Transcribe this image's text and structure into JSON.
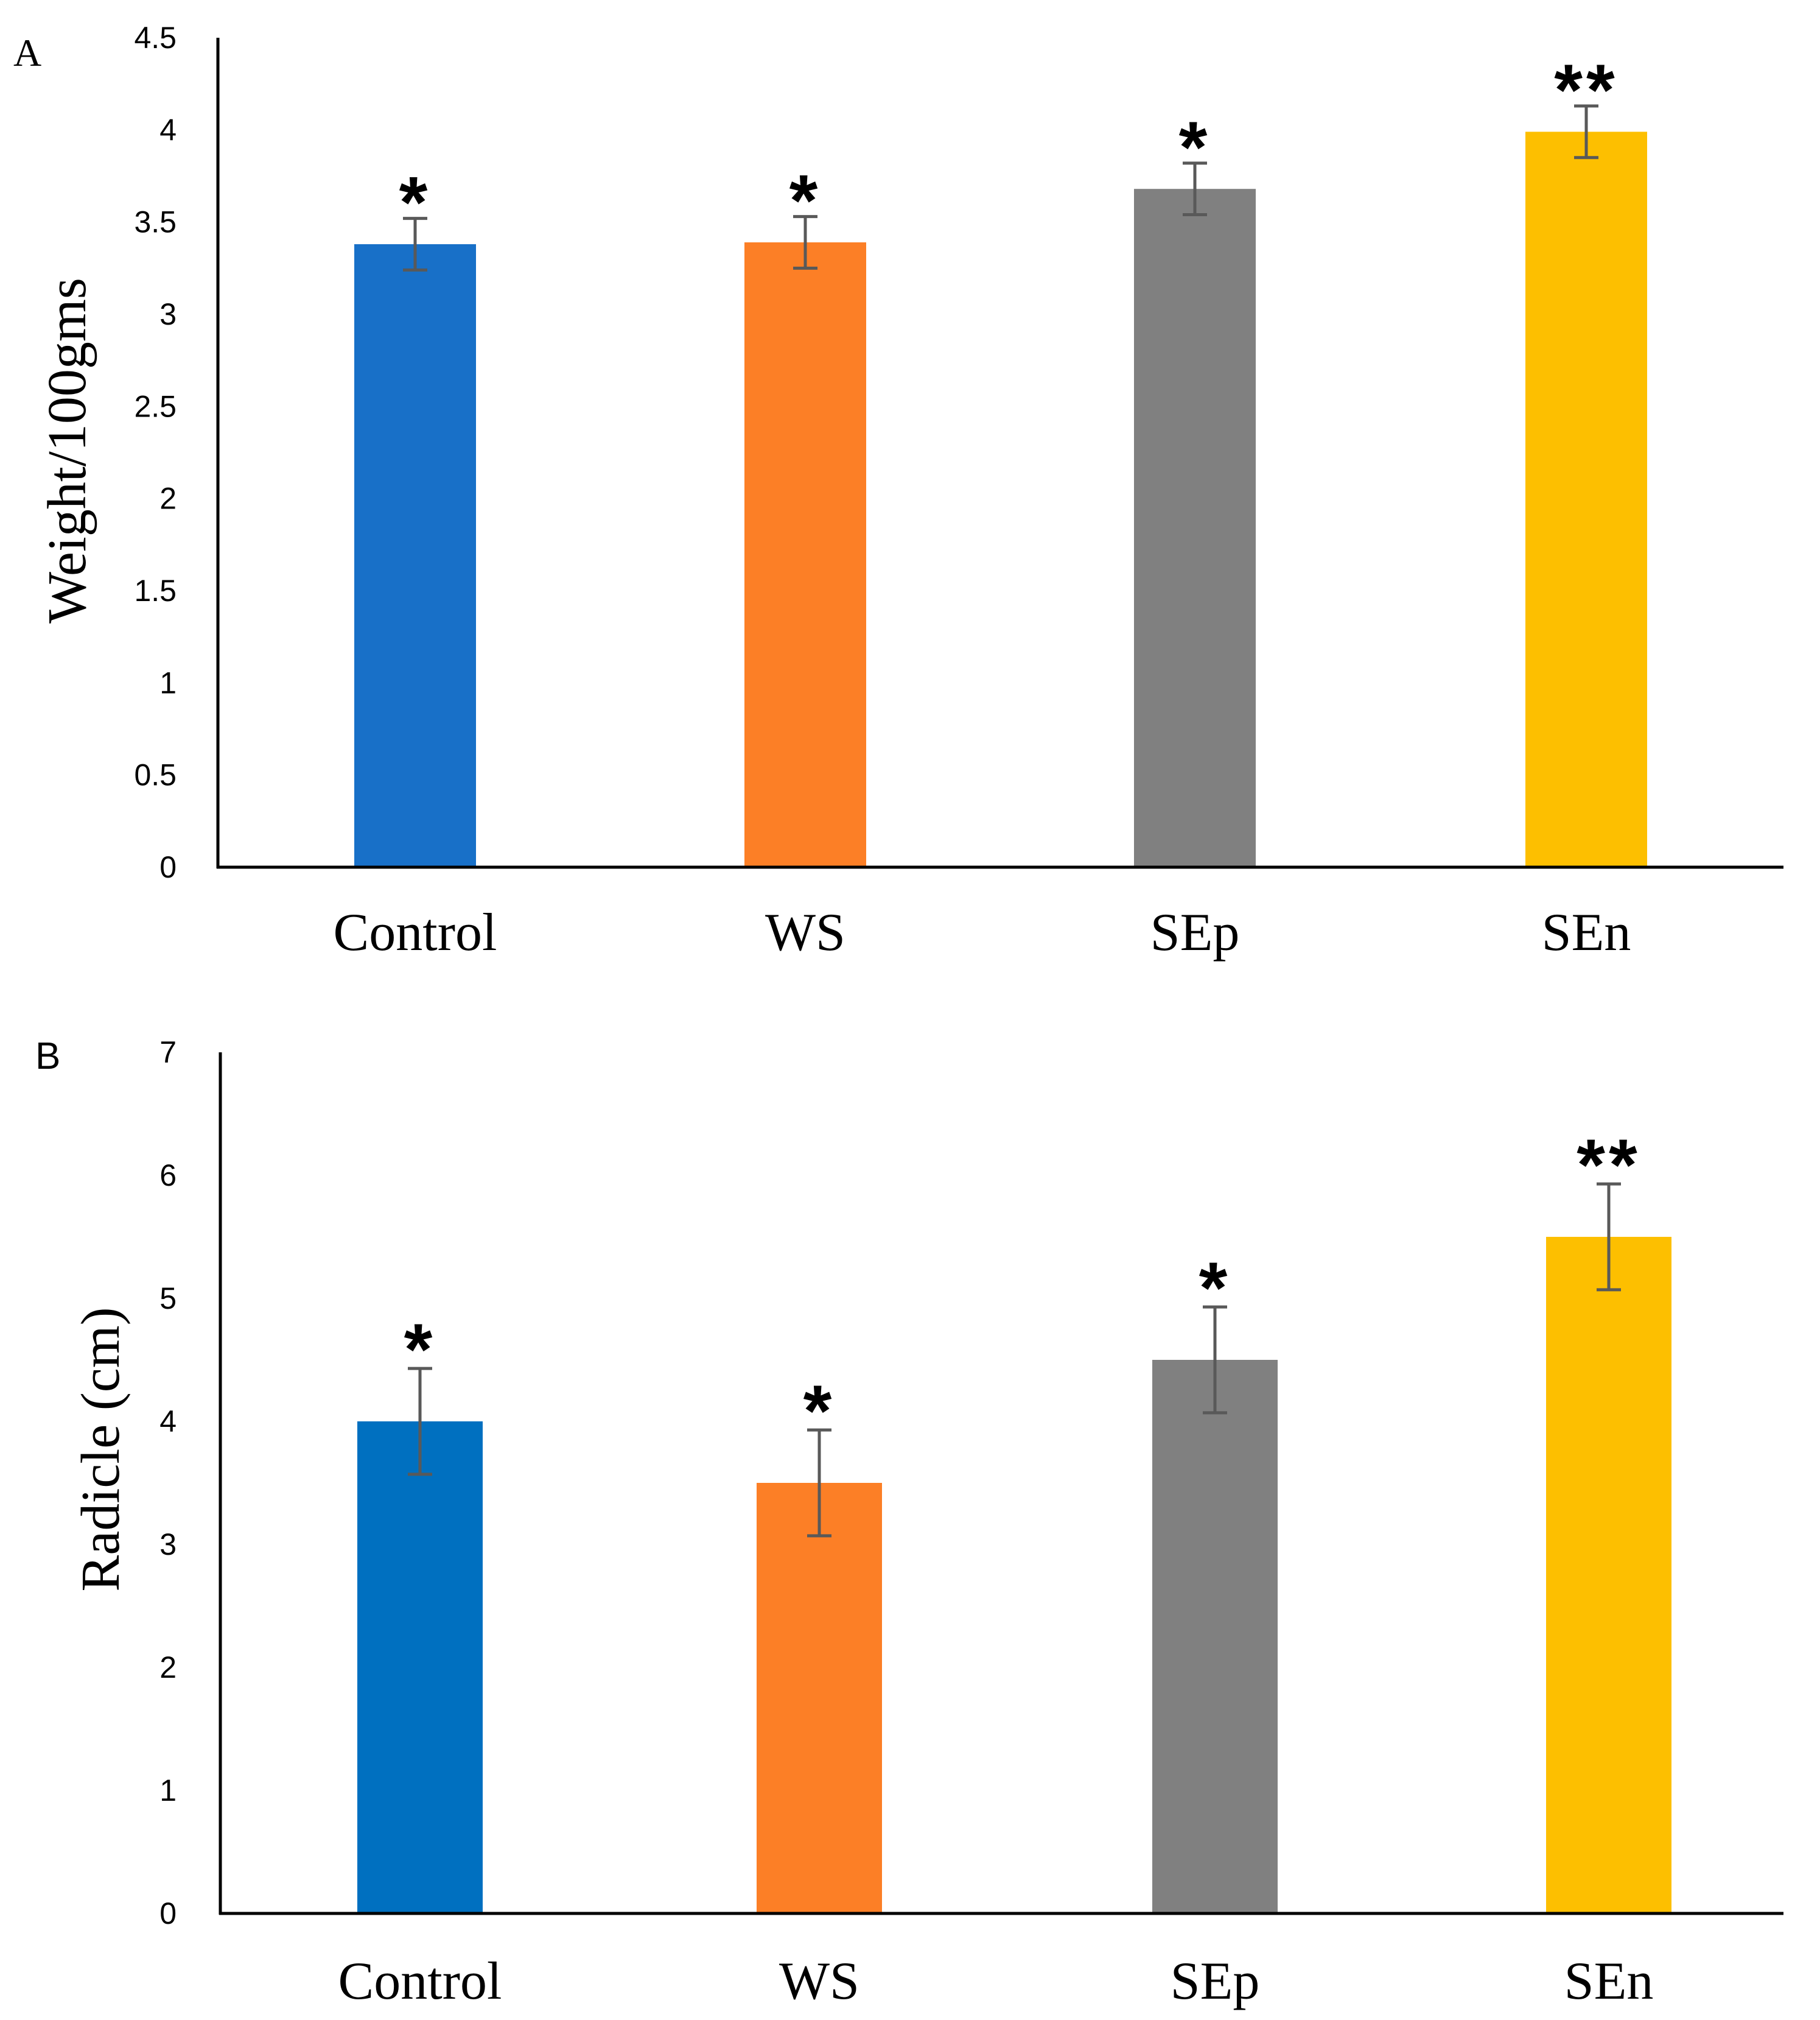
{
  "chart_data": [
    {
      "type": "bar",
      "panel_label": "A",
      "title": "",
      "xlabel": "",
      "ylabel": "Weight/100gms",
      "ylim": [
        0,
        4.5
      ],
      "yticks": [
        "0",
        "0.5",
        "1",
        "1.5",
        "2",
        "2.5",
        "3",
        "3.5",
        "4",
        "4.5"
      ],
      "categories": [
        "Control",
        "WS",
        "SEp",
        "SEn"
      ],
      "values": [
        3.38,
        3.39,
        3.68,
        3.99
      ],
      "errors": [
        0.14,
        0.14,
        0.14,
        0.14
      ],
      "significance": [
        "*",
        "*",
        "*",
        "**"
      ],
      "colors": [
        "#1870C8",
        "#FC7F26",
        "#808080",
        "#FDBF00"
      ]
    },
    {
      "type": "bar",
      "panel_label": "B",
      "title": "",
      "xlabel": "",
      "ylabel": "Radicle (cm)",
      "ylim": [
        0,
        7
      ],
      "yticks": [
        "0",
        "1",
        "2",
        "3",
        "4",
        "5",
        "6",
        "7"
      ],
      "categories": [
        "Control",
        "WS",
        "SEp",
        "SEn"
      ],
      "values": [
        4.0,
        3.5,
        4.5,
        5.5
      ],
      "errors": [
        0.43,
        0.43,
        0.43,
        0.43
      ],
      "significance": [
        "*",
        "*",
        "*",
        "**"
      ],
      "colors": [
        "#0070C0",
        "#FC7F26",
        "#808080",
        "#FDBF00"
      ]
    }
  ]
}
